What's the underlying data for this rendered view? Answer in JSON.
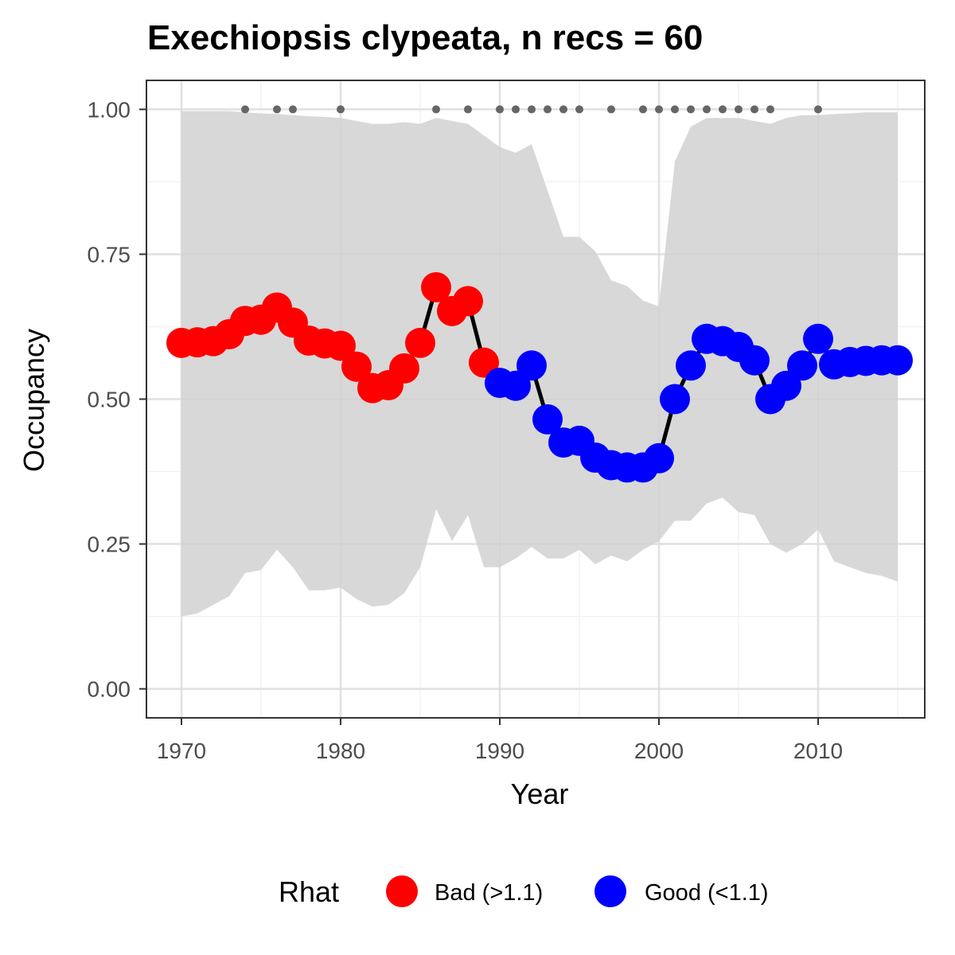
{
  "chart_data": {
    "type": "line",
    "title": "Exechiopsis clypeata, n recs = 60",
    "xlabel": "Year",
    "ylabel": "Occupancy",
    "xlim": [
      1967.8,
      2016.7
    ],
    "ylim": [
      -0.05,
      1.05
    ],
    "x_ticks": [
      1970,
      1980,
      1990,
      2000,
      2010
    ],
    "y_ticks": [
      0.0,
      0.25,
      0.5,
      0.75,
      1.0
    ],
    "y_tick_labels": [
      "0.00",
      "0.25",
      "0.50",
      "0.75",
      "1.00"
    ],
    "grid": true,
    "legend": {
      "title": "Rhat",
      "position": "bottom",
      "items": [
        {
          "label": "Bad (>1.1)",
          "color": "#ff0000"
        },
        {
          "label": "Good (<1.1)",
          "color": "#0000ff"
        }
      ]
    },
    "colors": {
      "bad": "#ff0000",
      "good": "#0000ff",
      "ribbon": "#d6d6d6",
      "line": "#000000",
      "record_dots": "#666666"
    },
    "x": [
      1970,
      1971,
      1972,
      1973,
      1974,
      1975,
      1976,
      1977,
      1978,
      1979,
      1980,
      1981,
      1982,
      1983,
      1984,
      1985,
      1986,
      1987,
      1988,
      1989,
      1990,
      1991,
      1992,
      1993,
      1994,
      1995,
      1996,
      1997,
      1998,
      1999,
      2000,
      2001,
      2002,
      2003,
      2004,
      2005,
      2006,
      2007,
      2008,
      2009,
      2010,
      2011,
      2012,
      2013,
      2014,
      2015
    ],
    "series": [
      {
        "name": "Occupancy",
        "values": [
          0.597,
          0.598,
          0.6,
          0.612,
          0.635,
          0.637,
          0.658,
          0.632,
          0.601,
          0.596,
          0.592,
          0.556,
          0.519,
          0.524,
          0.553,
          0.597,
          0.693,
          0.652,
          0.669,
          0.563,
          0.528,
          0.523,
          0.558,
          0.465,
          0.425,
          0.428,
          0.399,
          0.386,
          0.382,
          0.382,
          0.398,
          0.5,
          0.558,
          0.604,
          0.6,
          0.59,
          0.567,
          0.5,
          0.523,
          0.558,
          0.604,
          0.56,
          0.564,
          0.566,
          0.567,
          0.567
        ],
        "rhat": [
          "Bad",
          "Bad",
          "Bad",
          "Bad",
          "Bad",
          "Bad",
          "Bad",
          "Bad",
          "Bad",
          "Bad",
          "Bad",
          "Bad",
          "Bad",
          "Bad",
          "Bad",
          "Bad",
          "Bad",
          "Bad",
          "Bad",
          "Bad",
          "Good",
          "Good",
          "Good",
          "Good",
          "Good",
          "Good",
          "Good",
          "Good",
          "Good",
          "Good",
          "Good",
          "Good",
          "Good",
          "Good",
          "Good",
          "Good",
          "Good",
          "Good",
          "Good",
          "Good",
          "Good",
          "Good",
          "Good",
          "Good",
          "Good",
          "Good"
        ]
      }
    ],
    "ribbon_lower": [
      0.125,
      0.13,
      0.145,
      0.16,
      0.2,
      0.205,
      0.24,
      0.21,
      0.17,
      0.17,
      0.175,
      0.155,
      0.142,
      0.145,
      0.165,
      0.21,
      0.31,
      0.255,
      0.3,
      0.21,
      0.21,
      0.225,
      0.245,
      0.225,
      0.225,
      0.24,
      0.215,
      0.23,
      0.22,
      0.24,
      0.255,
      0.29,
      0.29,
      0.32,
      0.33,
      0.305,
      0.3,
      0.25,
      0.235,
      0.25,
      0.275,
      0.22,
      0.21,
      0.2,
      0.195,
      0.185
    ],
    "ribbon_upper": [
      0.997,
      0.997,
      0.997,
      0.997,
      0.995,
      0.993,
      0.992,
      0.99,
      0.988,
      0.987,
      0.985,
      0.98,
      0.975,
      0.975,
      0.978,
      0.975,
      0.985,
      0.98,
      0.975,
      0.955,
      0.935,
      0.925,
      0.94,
      0.86,
      0.78,
      0.78,
      0.755,
      0.705,
      0.695,
      0.67,
      0.66,
      0.91,
      0.97,
      0.985,
      0.985,
      0.985,
      0.98,
      0.975,
      0.985,
      0.99,
      0.99,
      0.992,
      0.993,
      0.995,
      0.995,
      0.995
    ],
    "record_years": [
      1974,
      1976,
      1977,
      1980,
      1986,
      1988,
      1990,
      1991,
      1992,
      1993,
      1994,
      1995,
      1997,
      1999,
      2000,
      2001,
      2002,
      2003,
      2004,
      2005,
      2006,
      2007,
      2010
    ]
  }
}
